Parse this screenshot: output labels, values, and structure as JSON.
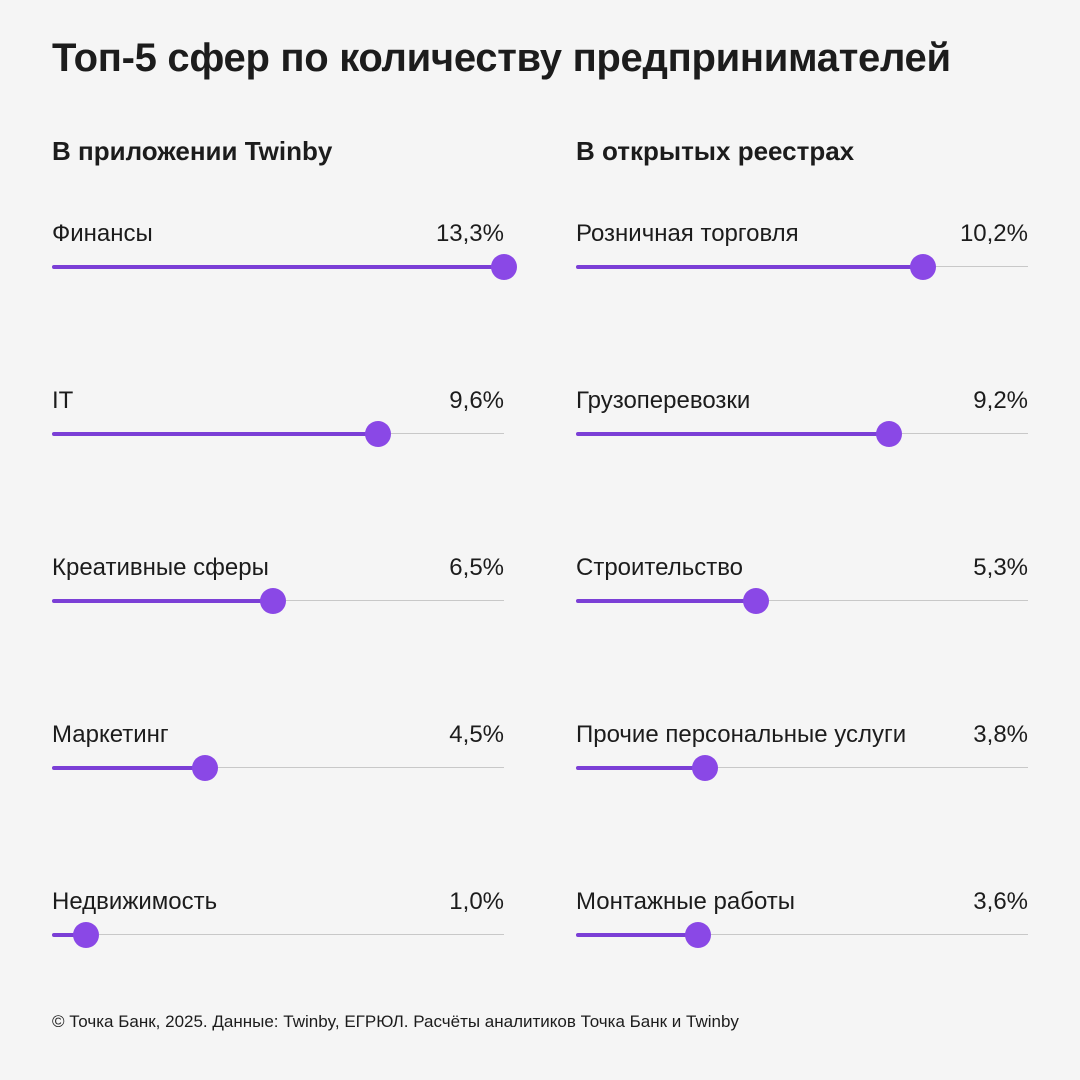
{
  "title": "Топ-5 сфер по количеству предпринимателей",
  "footer": "© Точка Банк, 2025. Данные: Twinby, ЕГРЮЛ. Расчёты аналитиков Точка Банк и Twinby",
  "colors": {
    "accent": "#7b3fd6",
    "knob": "#8a48e6",
    "track": "#c8c8c8",
    "background": "#f5f5f5"
  },
  "chart_data": [
    {
      "type": "bar",
      "title": "В приложении Twinby",
      "categories": [
        "Финансы",
        "IT",
        "Креативные сферы",
        "Маркетинг",
        "Недвижимость"
      ],
      "values": [
        13.3,
        9.6,
        6.5,
        4.5,
        1.0
      ],
      "value_labels": [
        "13,3%",
        "9,6%",
        "6,5%",
        "4,5%",
        "1,0%"
      ],
      "xlim": [
        0,
        13.3
      ],
      "unit": "%"
    },
    {
      "type": "bar",
      "title": "В открытых реестрах",
      "categories": [
        "Розничная торговля",
        "Грузоперевозки",
        "Строительство",
        "Прочие персональные услуги",
        "Монтажные работы"
      ],
      "values": [
        10.2,
        9.2,
        5.3,
        3.8,
        3.6
      ],
      "value_labels": [
        "10,2%",
        "9,2%",
        "5,3%",
        "3,8%",
        "3,6%"
      ],
      "xlim": [
        0,
        13.3
      ],
      "unit": "%"
    }
  ]
}
